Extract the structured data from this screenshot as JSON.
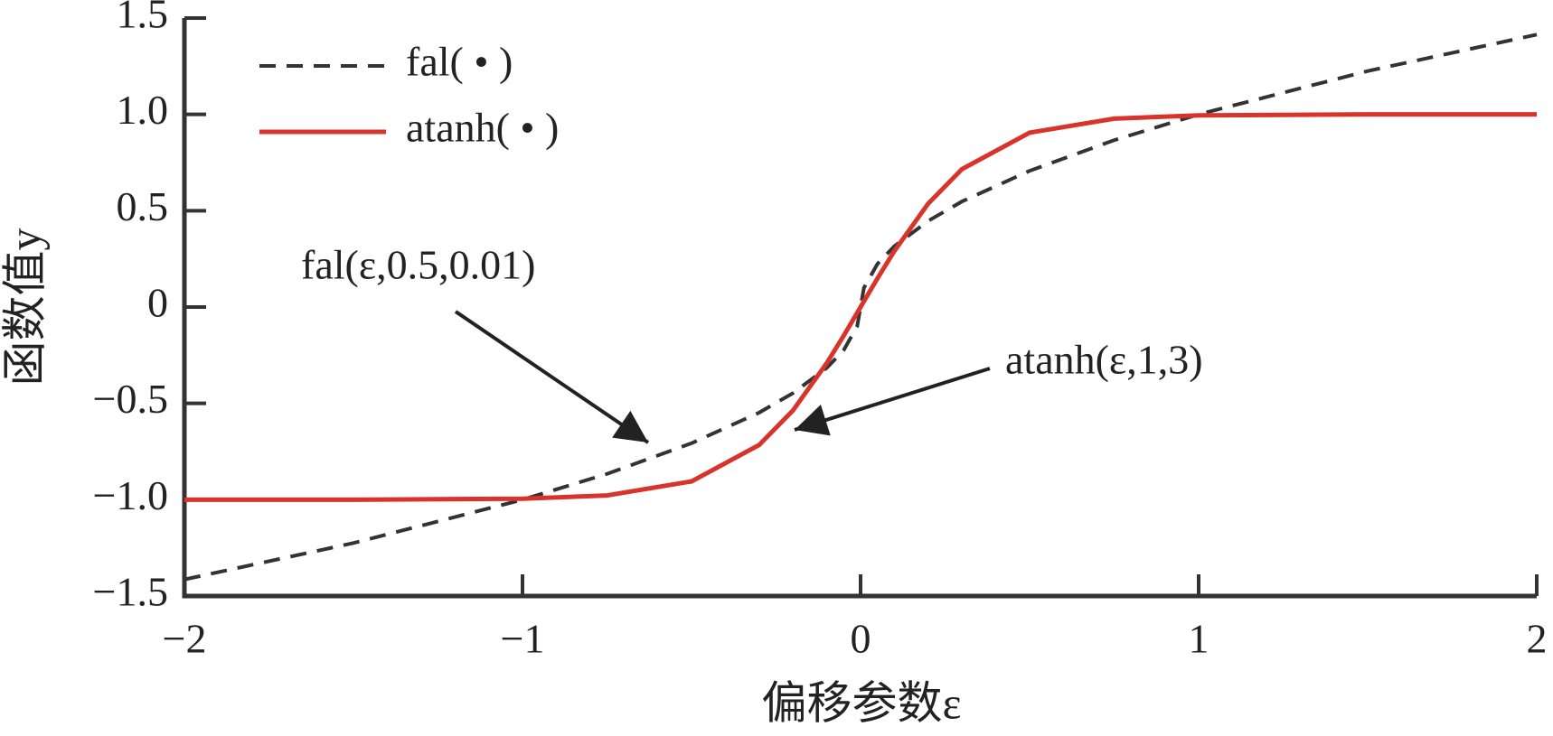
{
  "chart_data": {
    "type": "line",
    "xlabel": "偏移参数ε",
    "ylabel": "函数值y",
    "x": [
      -2,
      -1.5,
      -1,
      -0.75,
      -0.5,
      -0.3,
      -0.2,
      -0.1,
      -0.05,
      -0.01,
      0,
      0.01,
      0.05,
      0.1,
      0.2,
      0.3,
      0.5,
      0.75,
      1,
      1.5,
      2
    ],
    "series": [
      {
        "name": "fal( • )",
        "color": "#333333",
        "line_style": "dashed",
        "values": [
          -1.414,
          -1.225,
          -1,
          -0.866,
          -0.707,
          -0.548,
          -0.447,
          -0.316,
          -0.224,
          -0.1,
          0,
          0.1,
          0.224,
          0.316,
          0.447,
          0.548,
          0.707,
          0.866,
          1,
          1.225,
          1.414
        ]
      },
      {
        "name": "atanh( • )",
        "color": "#d9342b",
        "line_style": "solid",
        "values": [
          -1,
          -1,
          -0.995,
          -0.978,
          -0.905,
          -0.716,
          -0.537,
          -0.291,
          -0.149,
          -0.03,
          0,
          0.03,
          0.149,
          0.291,
          0.537,
          0.716,
          0.905,
          0.978,
          0.995,
          1,
          1
        ]
      }
    ],
    "annotations": [
      "fal(ε,0.5,0.01)",
      "atanh(ε,1,3)"
    ],
    "xlim": [
      -2,
      2
    ],
    "xticks": [
      {
        "value": -2,
        "label": "−2"
      },
      {
        "value": -1,
        "label": "−1"
      },
      0,
      1,
      2
    ],
    "ylim": [
      -1.5,
      1.5
    ],
    "yticks": [
      {
        "value": -1.5,
        "label": "−1.5"
      },
      {
        "value": -1.0,
        "label": "−1.0"
      },
      {
        "value": -0.5,
        "label": "−0.5"
      },
      0,
      0.5,
      {
        "value": 1.0,
        "label": "1.0"
      },
      1.5
    ],
    "legend": "upper left",
    "grid": false
  }
}
